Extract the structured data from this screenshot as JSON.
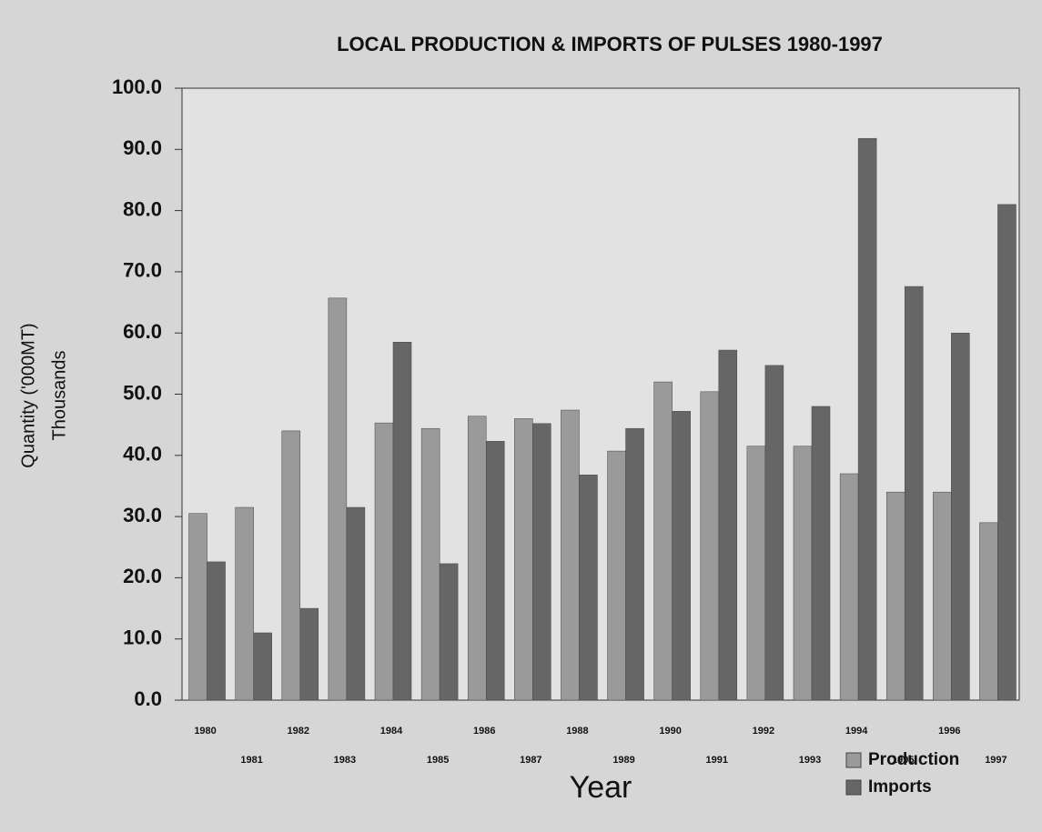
{
  "chart_data": {
    "type": "bar",
    "title": "LOCAL PRODUCTION & IMPORTS OF PULSES 1980-1997",
    "x_label": "Year",
    "y_label": "Quantity ('000MT)",
    "y_unit": "Thousands",
    "categories": [
      "1980",
      "1981",
      "1982",
      "1983",
      "1984",
      "1985",
      "1986",
      "1987",
      "1988",
      "1989",
      "1990",
      "1991",
      "1992",
      "1993",
      "1994",
      "1995",
      "1996",
      "1997"
    ],
    "series": [
      {
        "name": "Production",
        "color": "#9a9a9a",
        "values": [
          30.5,
          31.5,
          44,
          65.7,
          45.3,
          44.4,
          46.4,
          46,
          47.4,
          40.7,
          52,
          50.4,
          41.5,
          41.5,
          37,
          34,
          34,
          29
        ]
      },
      {
        "name": "Imports",
        "color": "#666666",
        "values": [
          22.6,
          11,
          15,
          31.5,
          58.5,
          22.3,
          42.3,
          45.2,
          36.8,
          44.4,
          47.2,
          57.2,
          54.7,
          48,
          91.8,
          67.6,
          60,
          81
        ]
      }
    ],
    "ylim": [
      0,
      100
    ],
    "yticks": [
      {
        "value": 0,
        "label": "0.0"
      },
      {
        "value": 10,
        "label": "10.0"
      },
      {
        "value": 20,
        "label": "20.0"
      },
      {
        "value": 30,
        "label": "30.0"
      },
      {
        "value": 40,
        "label": "40.0"
      },
      {
        "value": 50,
        "label": "50.0"
      },
      {
        "value": 60,
        "label": "60.0"
      },
      {
        "value": 70,
        "label": "70.0"
      },
      {
        "value": 80,
        "label": "80.0"
      },
      {
        "value": 90,
        "label": "90.0"
      },
      {
        "value": 100,
        "label": "100.0"
      }
    ],
    "legend": "bottom-right"
  }
}
